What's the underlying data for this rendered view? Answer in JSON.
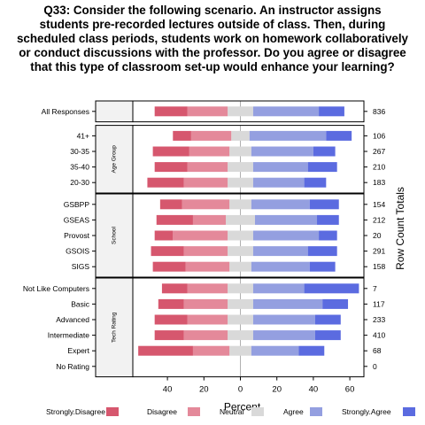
{
  "chart_data": {
    "type": "bar",
    "subtype": "diverging-stacked-likert",
    "title_lines": [
      "Q33: Consider the following scenario. An instructor assigns",
      "students pre-recorded lectures outside of class. Then, during",
      "scheduled class periods, students work on homework collaboratively",
      "or conduct discussions with the professor. Do you agree or disagree",
      "that this type of classroom set-up would enhance your learning?"
    ],
    "xlabel": "Percent",
    "right_axis_label": "Row Count Totals",
    "xlim": [
      -55,
      68
    ],
    "x_ticks": [
      -40,
      -20,
      0,
      20,
      40,
      60
    ],
    "x_tick_labels": [
      "40",
      "20",
      "0",
      "20",
      "40",
      "60"
    ],
    "legend_position": "bottom",
    "series": [
      {
        "name": "Strongly.Disagree",
        "color": "#d6576e"
      },
      {
        "name": "Disagree",
        "color": "#e4899a"
      },
      {
        "name": "Neutral",
        "color": "#d9d9d9"
      },
      {
        "name": "Agree",
        "color": "#949fe0"
      },
      {
        "name": "Strongly.Agree",
        "color": "#5b6be0"
      }
    ],
    "panels": [
      {
        "strip_label": "",
        "rows": [
          {
            "label": "All Responses",
            "count": "836",
            "values": [
              18,
              22,
              14,
              36,
              14
            ]
          }
        ]
      },
      {
        "strip_label": "Age Group",
        "rows": [
          {
            "label": "41+",
            "count": "106",
            "values": [
              10,
              22,
              10,
              42,
              14
            ]
          },
          {
            "label": "30-35",
            "count": "267",
            "values": [
              20,
              22,
              12,
              34,
              12
            ]
          },
          {
            "label": "35-40",
            "count": "210",
            "values": [
              18,
              22,
              14,
              30,
              16
            ]
          },
          {
            "label": "20-30",
            "count": "183",
            "values": [
              20,
              24,
              14,
              28,
              12
            ]
          }
        ]
      },
      {
        "strip_label": "School",
        "rows": [
          {
            "label": "GSBPP",
            "count": "154",
            "values": [
              12,
              26,
              12,
              32,
              16
            ]
          },
          {
            "label": "GSEAS",
            "count": "212",
            "values": [
              20,
              18,
              16,
              34,
              12
            ]
          },
          {
            "label": "Provost",
            "count": "20",
            "values": [
              10,
              30,
              14,
              36,
              10
            ]
          },
          {
            "label": "GSOIS",
            "count": "291",
            "values": [
              18,
              24,
              14,
              30,
              16
            ]
          },
          {
            "label": "SIGS",
            "count": "158",
            "values": [
              18,
              24,
              12,
              32,
              14
            ]
          }
        ]
      },
      {
        "strip_label": "Tech Rating",
        "rows": [
          {
            "label": "Not Like Computers",
            "count": "7",
            "values": [
              14,
              22,
              14,
              28,
              30
            ]
          },
          {
            "label": "Basic",
            "count": "117",
            "values": [
              14,
              24,
              14,
              38,
              14
            ]
          },
          {
            "label": "Advanced",
            "count": "233",
            "values": [
              18,
              22,
              14,
              34,
              14
            ]
          },
          {
            "label": "Intermediate",
            "count": "410",
            "values": [
              16,
              24,
              14,
              34,
              14
            ]
          },
          {
            "label": "Expert",
            "count": "68",
            "values": [
              30,
              20,
              12,
              26,
              14
            ]
          },
          {
            "label": "No Rating",
            "count": "0",
            "values": [
              0,
              0,
              0,
              0,
              0
            ]
          }
        ]
      }
    ]
  }
}
